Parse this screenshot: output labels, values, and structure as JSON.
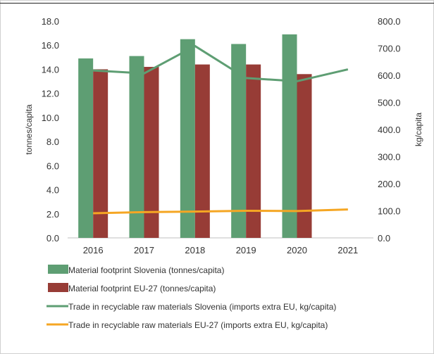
{
  "chart_data": {
    "type": "bar",
    "categories": [
      "2016",
      "2017",
      "2018",
      "2019",
      "2020",
      "2021"
    ],
    "y_left": {
      "label": "tonnes/capita",
      "ylim": [
        0,
        18
      ],
      "ticks": [
        "0.0",
        "2.0",
        "4.0",
        "6.0",
        "8.0",
        "10.0",
        "12.0",
        "14.0",
        "16.0",
        "18.0"
      ]
    },
    "y_right": {
      "label": "kg/capita",
      "ylim": [
        0,
        800
      ],
      "ticks": [
        "0.0",
        "100.0",
        "200.0",
        "300.0",
        "400.0",
        "500.0",
        "600.0",
        "700.0",
        "800.0"
      ]
    },
    "series": [
      {
        "name": "Material footprint Slovenia (tonnes/capita)",
        "kind": "bar",
        "axis": "left",
        "color": "#5e9e73",
        "values": [
          14.9,
          15.1,
          16.5,
          16.1,
          16.9,
          null
        ]
      },
      {
        "name": "Material footprint EU-27 (tonnes/capita)",
        "kind": "bar",
        "axis": "left",
        "color": "#973c36",
        "values": [
          14.0,
          14.2,
          14.4,
          14.4,
          13.6,
          null
        ]
      },
      {
        "name": "Trade in recyclable raw materials Slovenia (imports extra EU, kg/capita)",
        "kind": "line",
        "axis": "right",
        "color": "#5e9e73",
        "values": [
          618,
          607,
          708,
          590,
          578,
          622
        ]
      },
      {
        "name": "Trade in recyclable raw materials EU-27 (imports extra EU, kg/capita)",
        "kind": "line",
        "axis": "right",
        "color": "#f5a623",
        "values": [
          91,
          95,
          97,
          100,
          99,
          105
        ]
      }
    ],
    "grid": false,
    "legend": "bottom"
  }
}
